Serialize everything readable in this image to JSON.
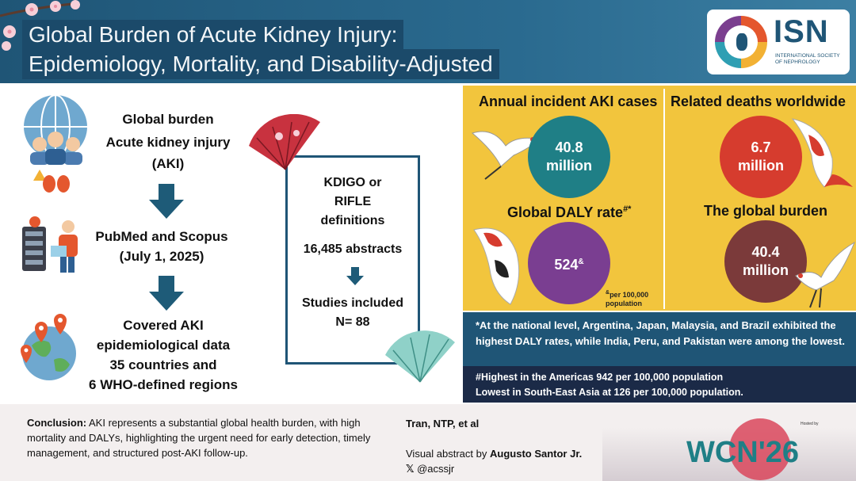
{
  "header": {
    "title_line1": "Global Burden of Acute Kidney Injury:",
    "title_line2": "Epidemiology, Mortality, and Disability-Adjusted",
    "logo_name": "ISN",
    "logo_subtitle": "INTERNATIONAL SOCIETY OF NEPHROLOGY"
  },
  "flow": {
    "step1": [
      "Global burden",
      "Acute kidney injury",
      "(AKI)"
    ],
    "step2": [
      "PubMed and Scopus",
      "(July 1, 2025)"
    ],
    "step3": [
      "Covered AKI",
      "epidemiological data",
      "35 countries and",
      "6 WHO-defined regions"
    ]
  },
  "center": {
    "def_lines": [
      "KDIGO or",
      "RIFLE",
      "definitions"
    ],
    "abstracts": "16,485 abstracts",
    "studies_line1": "Studies included",
    "studies_line2": "N= 88"
  },
  "stats": {
    "incident_title": "Annual incident AKI cases",
    "incident_value": "40.8",
    "incident_unit": "million",
    "deaths_title": "Related deaths worldwide",
    "deaths_value": "6.7",
    "deaths_unit": "million",
    "daly_title": "Global DALY rate",
    "daly_title_sup": "#*",
    "daly_value": "524",
    "daly_value_sup": "&",
    "daly_note_sup": "&",
    "daly_note_line1": "per 100,000",
    "daly_note_line2": "population",
    "burden_title": "The global burden",
    "burden_value": "40.4",
    "burden_unit": "million"
  },
  "notes": {
    "national": "*At the national level, Argentina, Japan, Malaysia, and Brazil exhibited the highest DALY rates, while India, Peru, and Pakistan were among the lowest.",
    "regional_line1": "#Highest in the Americas 942 per 100,000 population",
    "regional_line2": "Lowest in South-East Asia at 126 per 100,000 population."
  },
  "footer": {
    "conclusion_label": "Conclusion:",
    "conclusion_text": "AKI represents a substantial global health burden, with high mortality and DALYs, highlighting the urgent need for early detection, timely management, and structured post-AKI follow-up.",
    "author": "Tran, NTP, et al",
    "visual_prefix": "Visual abstract by",
    "visual_name": "Augusto Santor Jr.",
    "handle": "@acssjr",
    "event": "WCN'26",
    "hosted_by": "Hosted by"
  },
  "colors": {
    "header_bg": "#1f5576",
    "panel_yellow": "#f2c53d",
    "teal": "#1f7f86",
    "red": "#d63c2e",
    "purple": "#7a3e91",
    "maroon": "#7b3a3a",
    "arrow": "#1e5b78"
  },
  "icons": [
    "globe-people-icon",
    "database-computer-icon",
    "world-map-pins-icon",
    "fan-icon",
    "crane-icon",
    "koi-fish-icon",
    "x-logo-icon",
    "cherry-blossom-icon"
  ]
}
